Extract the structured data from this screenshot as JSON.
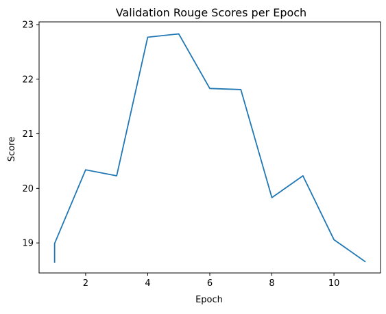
{
  "chart_data": {
    "type": "line",
    "title": "Validation Rouge Scores per Epoch",
    "xlabel": "Epoch",
    "ylabel": "Score",
    "xlim": [
      0.5,
      11.5
    ],
    "ylim": [
      18.45,
      23.05
    ],
    "xticks": [
      2,
      4,
      6,
      8,
      10
    ],
    "yticks": [
      19,
      20,
      21,
      22,
      23
    ],
    "grid": false,
    "series": [
      {
        "color": "#1f77b4",
        "x": [
          1,
          1,
          2,
          3,
          4,
          5,
          6,
          7,
          8,
          9,
          10,
          11
        ],
        "y": [
          18.65,
          18.99,
          20.34,
          20.23,
          22.77,
          22.83,
          21.83,
          21.81,
          19.83,
          20.23,
          19.06,
          18.66
        ]
      }
    ]
  }
}
